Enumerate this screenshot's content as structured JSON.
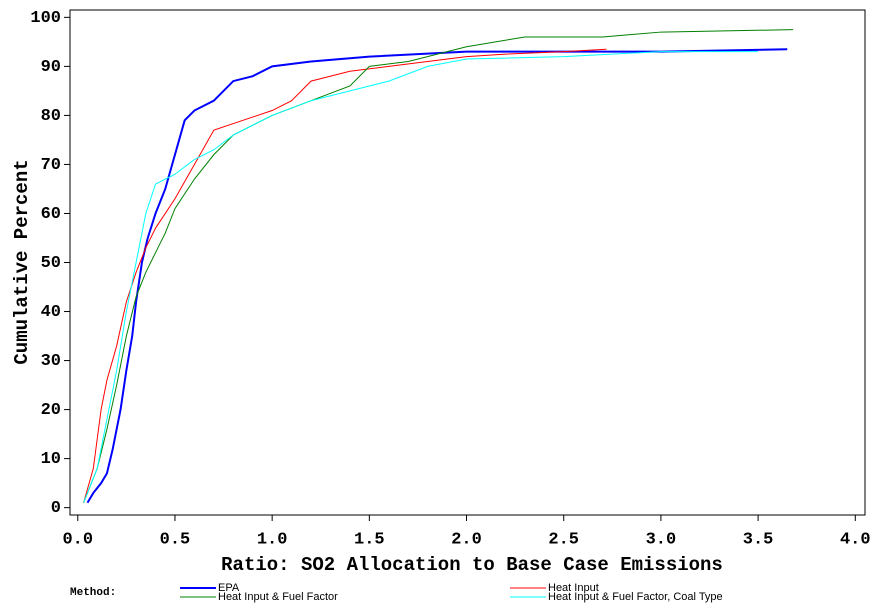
{
  "chart_data": {
    "type": "line",
    "xlabel": "Ratio: SO2 Allocation to Base Case Emissions",
    "ylabel": "Cumulative Percent",
    "legend_title": "Method:",
    "legend_position": "bottom",
    "xlim": [
      -0.04,
      4.05
    ],
    "ylim": [
      -1.5,
      101.5
    ],
    "xticks": [
      {
        "value": 0,
        "label": "0.0"
      },
      0.5,
      {
        "value": 1,
        "label": "1.0"
      },
      1.5,
      {
        "value": 2,
        "label": "2.0"
      },
      2.5,
      {
        "value": 3,
        "label": "3.0"
      },
      3.5,
      {
        "value": 4,
        "label": "4.0"
      }
    ],
    "yticks": [
      0,
      10,
      20,
      30,
      40,
      50,
      60,
      70,
      80,
      90,
      100
    ],
    "series": [
      {
        "name": "EPA",
        "color": "#0000ff",
        "width": 2,
        "x": [
          0.05,
          0.08,
          0.12,
          0.15,
          0.18,
          0.22,
          0.25,
          0.28,
          0.3,
          0.33,
          0.36,
          0.4,
          0.45,
          0.5,
          0.55,
          0.6,
          0.7,
          0.8,
          0.9,
          1.0,
          1.2,
          1.5,
          2.0,
          2.5,
          3.0,
          3.65
        ],
        "values": [
          1,
          3,
          5,
          7,
          12,
          20,
          28,
          35,
          42,
          50,
          55,
          60,
          65,
          72,
          79,
          81,
          83,
          87,
          88,
          90,
          91,
          92,
          93,
          93,
          93,
          93.5
        ]
      },
      {
        "name": "Heat Input",
        "color": "#ff0000",
        "width": 1,
        "x": [
          0.03,
          0.08,
          0.12,
          0.15,
          0.2,
          0.25,
          0.3,
          0.35,
          0.4,
          0.5,
          0.6,
          0.7,
          0.85,
          1.0,
          1.1,
          1.2,
          1.4,
          1.6,
          1.8,
          2.0,
          2.2,
          2.5,
          2.72
        ],
        "values": [
          1,
          8,
          20,
          26,
          33,
          42,
          48,
          53,
          57,
          63,
          70,
          77,
          79,
          81,
          83,
          87,
          89,
          90,
          91,
          92,
          92.5,
          93,
          93.5
        ]
      },
      {
        "name": "Heat Input & Fuel Factor",
        "color": "#008000",
        "width": 1,
        "x": [
          0.03,
          0.1,
          0.15,
          0.2,
          0.25,
          0.3,
          0.35,
          0.4,
          0.45,
          0.5,
          0.6,
          0.7,
          0.8,
          0.9,
          1.0,
          1.2,
          1.4,
          1.5,
          1.7,
          2.0,
          2.3,
          2.7,
          3.0,
          3.68
        ],
        "values": [
          1,
          8,
          16,
          25,
          35,
          43,
          48,
          52,
          56,
          61,
          67,
          72,
          76,
          78,
          80,
          83,
          86,
          90,
          91,
          94,
          96,
          96,
          97,
          97.5
        ]
      },
      {
        "name": "Heat Input & Fuel Factor, Coal Type",
        "color": "#00ffff",
        "width": 1,
        "x": [
          0.03,
          0.1,
          0.15,
          0.2,
          0.25,
          0.3,
          0.35,
          0.4,
          0.5,
          0.6,
          0.7,
          0.8,
          1.0,
          1.2,
          1.4,
          1.6,
          1.8,
          2.0,
          2.5,
          3.0,
          3.5
        ],
        "values": [
          1,
          8,
          18,
          28,
          40,
          50,
          60,
          66,
          68,
          71,
          73,
          76,
          80,
          83,
          85,
          87,
          90,
          91.5,
          92,
          93,
          93
        ]
      }
    ]
  }
}
